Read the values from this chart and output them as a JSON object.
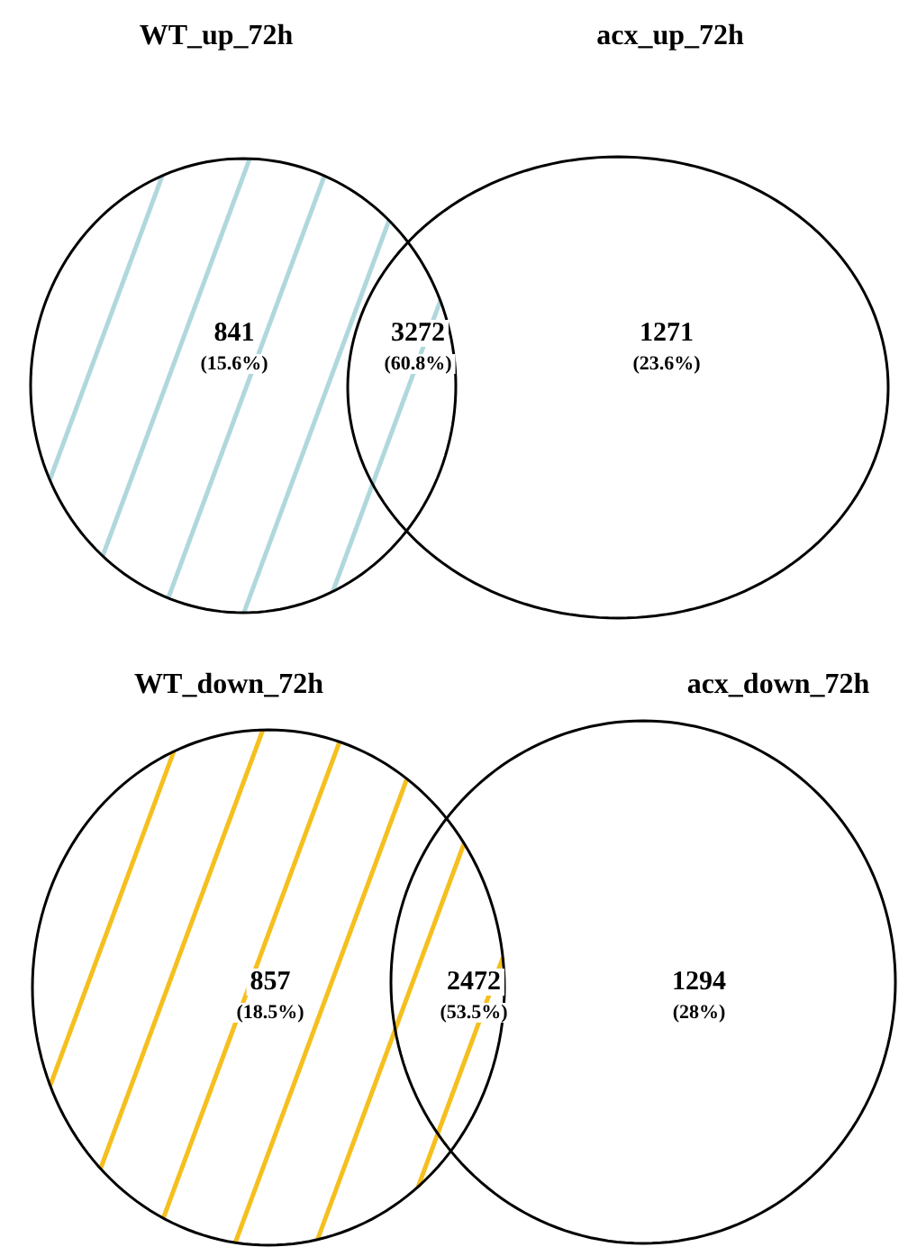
{
  "chart_data": [
    {
      "type": "other",
      "color": "#b0d8dc",
      "categories": [
        null,
        null,
        null
      ],
      "values": [
        841,
        3272,
        1271
      ],
      "data_labels": true,
      "annotations": [
        "WT_up_72h",
        "acx_up_72h",
        "(15.6%)",
        "(60.8%)",
        "(23.6%)"
      ]
    },
    {
      "type": "other",
      "color": "#f5bf1e",
      "categories": [
        null,
        null,
        null
      ],
      "values": [
        857,
        2472,
        1294
      ],
      "data_labels": true,
      "annotations": [
        "WT_down_72h",
        "acx_down_72h",
        "(18.5%)",
        "(53.5%)",
        "(28%)"
      ]
    }
  ]
}
